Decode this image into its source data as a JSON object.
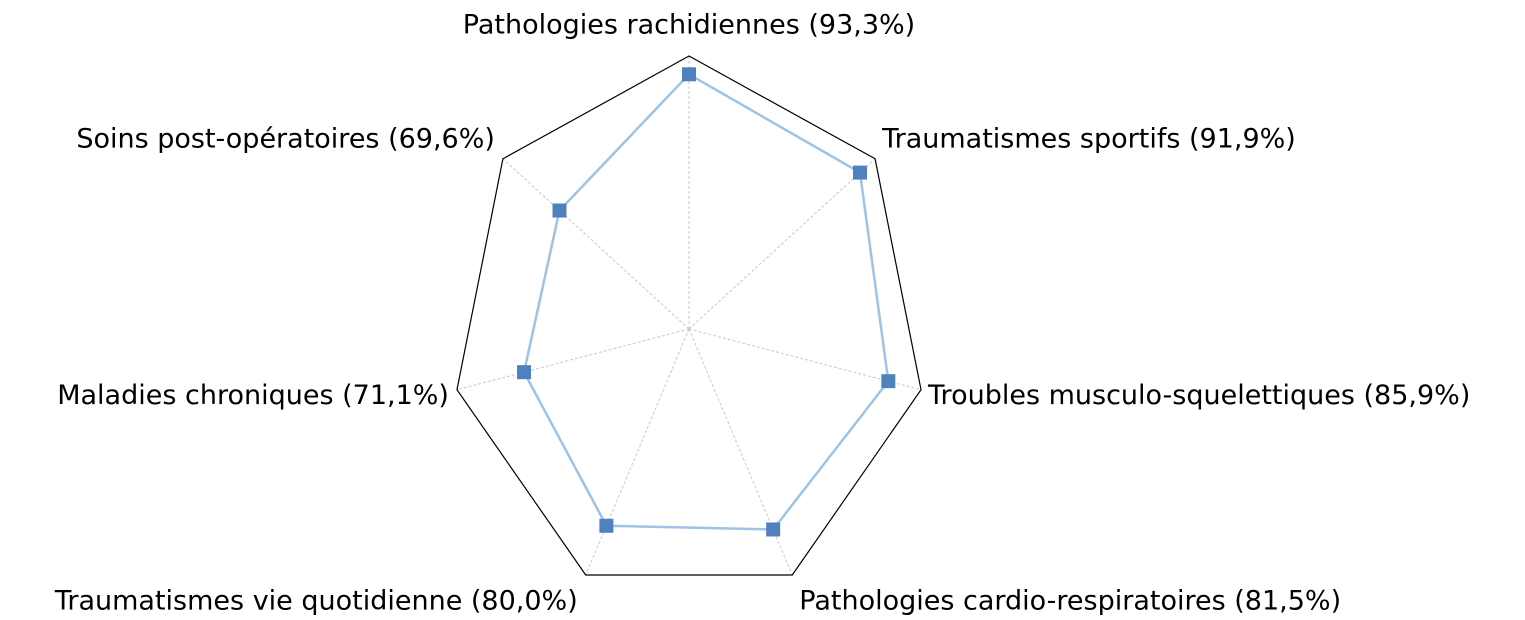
{
  "chart_data": {
    "type": "radar",
    "categories": [
      "Pathologies rachidiennes (93,3%)",
      "Traumatismes sportifs (91,9%)",
      "Troubles musculo-squelettiques (85,9%)",
      "Pathologies cardio-respiratoires (81,5%)",
      "Traumatismes vie quotidienne (80,0%)",
      "Maladies chroniques (71,1%)",
      "Soins post-opératoires (69,6%)"
    ],
    "values": [
      93.3,
      91.9,
      85.9,
      81.5,
      80.0,
      71.1,
      69.6
    ],
    "color": "#4f81bd",
    "line_color": "#9dc3e6",
    "ylim": [
      0,
      100
    ],
    "grid": true
  }
}
